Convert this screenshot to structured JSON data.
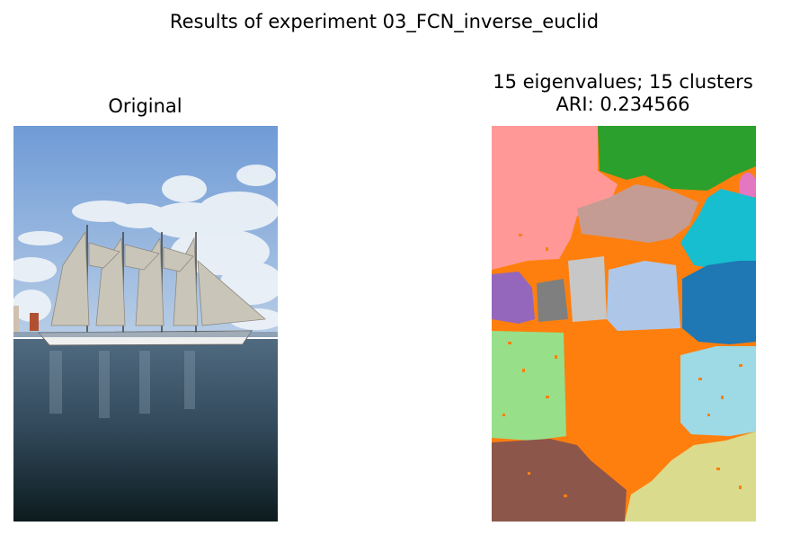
{
  "figure": {
    "suptitle": "Results of experiment 03_FCN_inverse_euclid"
  },
  "panels": {
    "original": {
      "title": "Original"
    },
    "segmentation": {
      "title_line1": "15 eigenvalues; 15 clusters",
      "title_line2": "ARI: 0.234566"
    }
  },
  "colors": {
    "sky_top": "#6f9bd6",
    "sky_bottom": "#b8cde6",
    "water_top": "#506a80",
    "water_bottom": "#0c1b1e",
    "cluster_salmon": "#ff9896",
    "cluster_green": "#2ca02c",
    "cluster_pink": "#e377c2",
    "cluster_cyan": "#17becf",
    "cluster_rosybrown": "#c49c94",
    "cluster_orange": "#ff7f0e",
    "cluster_purple": "#9467bd",
    "cluster_gray": "#7f7f7f",
    "cluster_silver": "#c7c7c7",
    "cluster_lightblue": "#aec7e8",
    "cluster_blue": "#1f77b4",
    "cluster_lightgreen": "#98df8a",
    "cluster_paleblue": "#9edae5",
    "cluster_brown": "#8c564b",
    "cluster_khaki": "#dbdb8d"
  }
}
